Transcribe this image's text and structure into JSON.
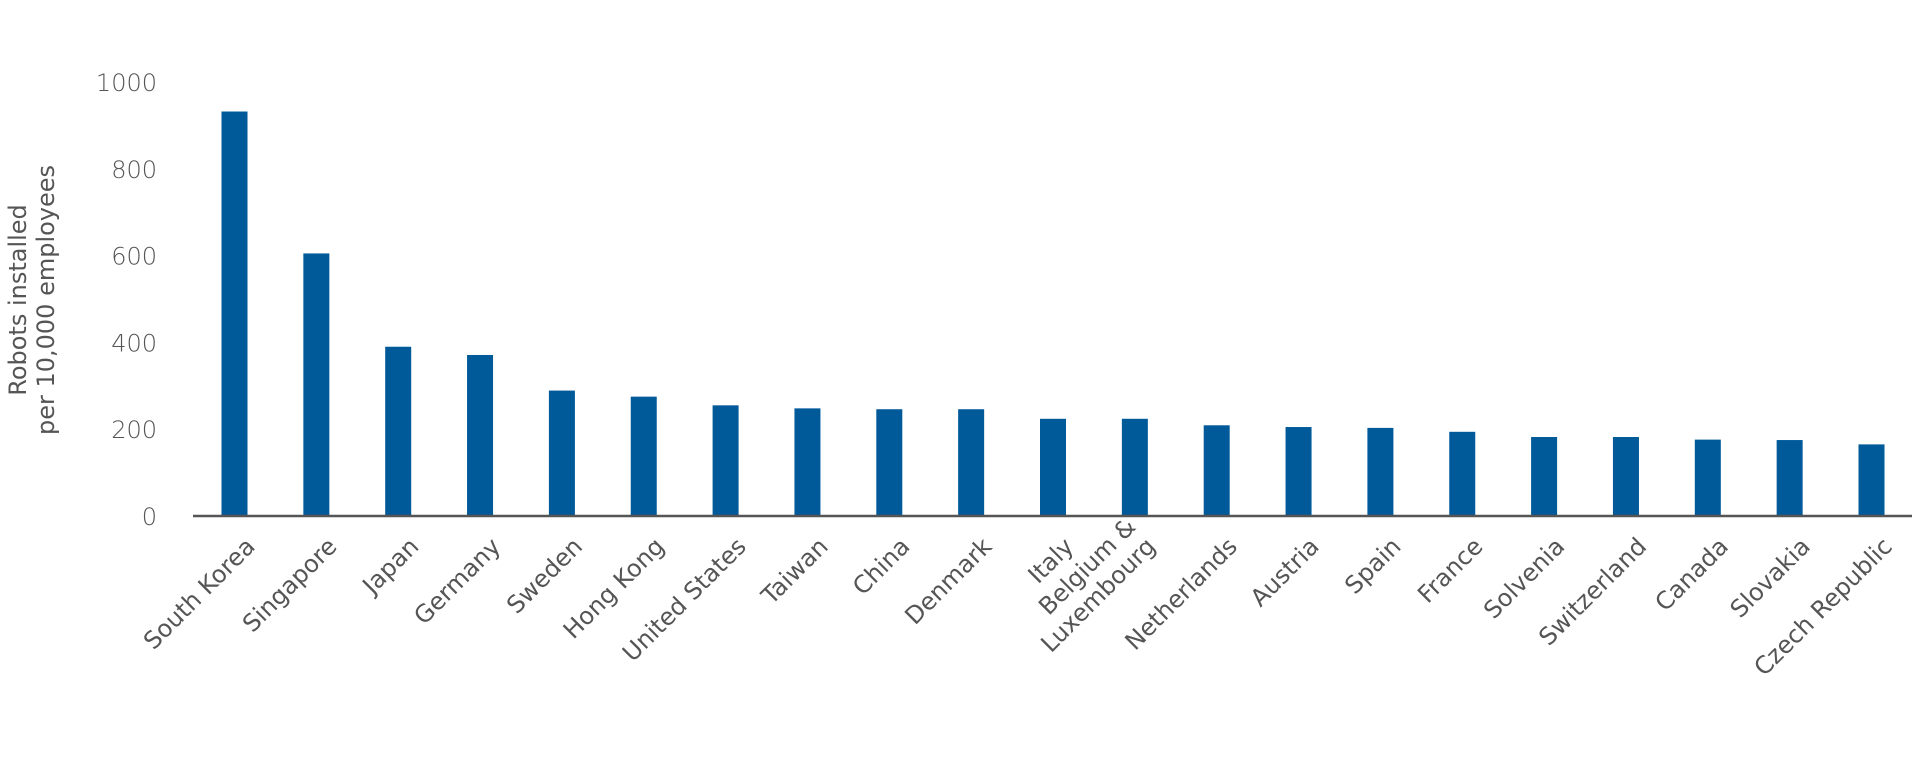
{
  "chart_data": {
    "type": "bar",
    "ylabel": [
      "Robots installed",
      "per 10,000 employees"
    ],
    "xlabel": "",
    "ylim": [
      0,
      1000
    ],
    "yticks": [
      0,
      200,
      400,
      600,
      800,
      1000
    ],
    "grid": false,
    "bar_color": "#005a9a",
    "categories": [
      "South Korea",
      "Singapore",
      "Japan",
      "Germany",
      "Sweden",
      "Hong Kong",
      "United States",
      "Taiwan",
      "China",
      "Denmark",
      "Italy",
      "Belgium & Luxembourg",
      "Netherlands",
      "Austria",
      "Spain",
      "France",
      "Solvenia",
      "Switzerland",
      "Canada",
      "Slovakia",
      "Czech Republic"
    ],
    "category_lines": [
      [
        "South Korea"
      ],
      [
        "Singapore"
      ],
      [
        "Japan"
      ],
      [
        "Germany"
      ],
      [
        "Sweden"
      ],
      [
        "Hong Kong"
      ],
      [
        "United States"
      ],
      [
        "Taiwan"
      ],
      [
        "China"
      ],
      [
        "Denmark"
      ],
      [
        "Italy"
      ],
      [
        "Belgium &",
        "Luxembourg"
      ],
      [
        "Netherlands"
      ],
      [
        "Austria"
      ],
      [
        "Spain"
      ],
      [
        "France"
      ],
      [
        "Solvenia"
      ],
      [
        "Switzerland"
      ],
      [
        "Canada"
      ],
      [
        "Slovakia"
      ],
      [
        "Czech Republic"
      ]
    ],
    "values": [
      932,
      605,
      390,
      371,
      289,
      275,
      255,
      248,
      246,
      246,
      224,
      224,
      209,
      205,
      203,
      194,
      182,
      182,
      176,
      175,
      165
    ]
  }
}
